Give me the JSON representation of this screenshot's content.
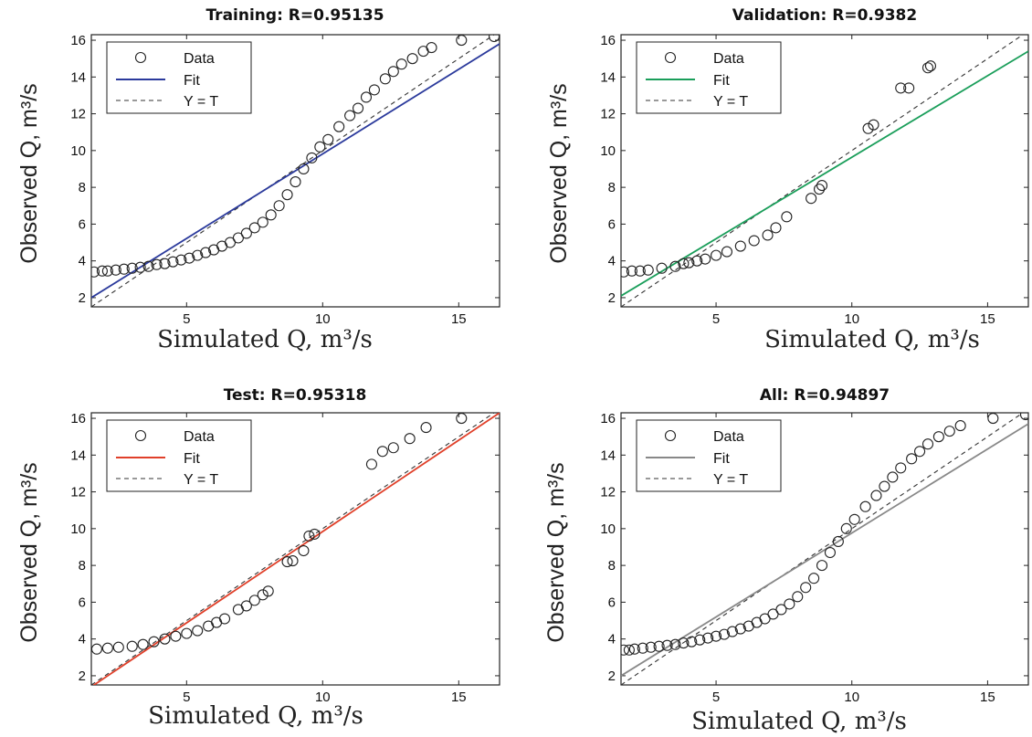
{
  "chart_data": [
    {
      "id": "training",
      "type": "scatter",
      "title": "Training: R=0.95135",
      "xlabel": "Simulated Q, m³/s",
      "ylabel": "Observed Q, m³/s",
      "xlim": [
        1.5,
        16.5
      ],
      "ylim": [
        1.5,
        16.3
      ],
      "xticks": [
        5,
        10,
        15
      ],
      "yticks": [
        2,
        4,
        6,
        8,
        10,
        12,
        14,
        16
      ],
      "grid": false,
      "legend_position": "top-left",
      "fit_color": "#2b3a9c",
      "fit_line": {
        "x": [
          1.5,
          16.5
        ],
        "y": [
          2.0,
          15.8
        ]
      },
      "legend": [
        "Data",
        "Fit",
        "Y = T"
      ],
      "series": [
        {
          "name": "Data",
          "points": [
            [
              1.6,
              3.4
            ],
            [
              1.9,
              3.45
            ],
            [
              2.1,
              3.45
            ],
            [
              2.4,
              3.5
            ],
            [
              2.7,
              3.55
            ],
            [
              3.0,
              3.6
            ],
            [
              3.3,
              3.65
            ],
            [
              3.6,
              3.7
            ],
            [
              3.9,
              3.8
            ],
            [
              4.2,
              3.85
            ],
            [
              4.5,
              3.95
            ],
            [
              4.8,
              4.05
            ],
            [
              5.1,
              4.15
            ],
            [
              5.4,
              4.3
            ],
            [
              5.7,
              4.45
            ],
            [
              6.0,
              4.6
            ],
            [
              6.3,
              4.8
            ],
            [
              6.6,
              5.0
            ],
            [
              6.9,
              5.25
            ],
            [
              7.2,
              5.5
            ],
            [
              7.5,
              5.8
            ],
            [
              7.8,
              6.1
            ],
            [
              8.1,
              6.5
            ],
            [
              8.4,
              7.0
            ],
            [
              8.7,
              7.6
            ],
            [
              9.0,
              8.3
            ],
            [
              9.3,
              9.0
            ],
            [
              9.6,
              9.6
            ],
            [
              9.9,
              10.2
            ],
            [
              10.2,
              10.6
            ],
            [
              10.6,
              11.3
            ],
            [
              11.0,
              11.9
            ],
            [
              11.3,
              12.3
            ],
            [
              11.6,
              12.9
            ],
            [
              11.9,
              13.3
            ],
            [
              12.3,
              13.9
            ],
            [
              12.6,
              14.3
            ],
            [
              12.9,
              14.7
            ],
            [
              13.3,
              15.0
            ],
            [
              13.7,
              15.4
            ],
            [
              14.0,
              15.6
            ],
            [
              15.1,
              16.0
            ],
            [
              16.3,
              16.2
            ]
          ]
        }
      ]
    },
    {
      "id": "validation",
      "type": "scatter",
      "title": "Validation: R=0.9382",
      "xlabel": "Simulated Q, m³/s",
      "ylabel": "Observed Q, m³/s",
      "xlim": [
        1.5,
        16.5
      ],
      "ylim": [
        1.5,
        16.3
      ],
      "xticks": [
        5,
        10,
        15
      ],
      "yticks": [
        2,
        4,
        6,
        8,
        10,
        12,
        14,
        16
      ],
      "grid": false,
      "legend_position": "top-left",
      "fit_color": "#1a9e5a",
      "fit_line": {
        "x": [
          1.5,
          16.5
        ],
        "y": [
          2.1,
          15.4
        ]
      },
      "legend": [
        "Data",
        "Fit",
        "Y = T"
      ],
      "series": [
        {
          "name": "Data",
          "points": [
            [
              1.6,
              3.4
            ],
            [
              1.9,
              3.45
            ],
            [
              2.2,
              3.45
            ],
            [
              2.5,
              3.5
            ],
            [
              3.0,
              3.6
            ],
            [
              3.5,
              3.7
            ],
            [
              3.8,
              3.85
            ],
            [
              4.0,
              3.9
            ],
            [
              4.3,
              4.0
            ],
            [
              4.6,
              4.1
            ],
            [
              5.0,
              4.3
            ],
            [
              5.4,
              4.5
            ],
            [
              5.9,
              4.8
            ],
            [
              6.4,
              5.1
            ],
            [
              6.9,
              5.4
            ],
            [
              7.2,
              5.8
            ],
            [
              7.6,
              6.4
            ],
            [
              8.5,
              7.4
            ],
            [
              8.8,
              7.9
            ],
            [
              8.9,
              8.1
            ],
            [
              10.6,
              11.2
            ],
            [
              10.8,
              11.4
            ],
            [
              11.8,
              13.4
            ],
            [
              12.1,
              13.4
            ],
            [
              12.8,
              14.5
            ],
            [
              12.9,
              14.6
            ]
          ]
        }
      ]
    },
    {
      "id": "test",
      "type": "scatter",
      "title": "Test: R=0.95318",
      "xlabel": "Simulated Q, m³/s",
      "ylabel": "Observed Q, m³/s",
      "xlim": [
        1.5,
        16.5
      ],
      "ylim": [
        1.5,
        16.3
      ],
      "xticks": [
        5,
        10,
        15
      ],
      "yticks": [
        2,
        4,
        6,
        8,
        10,
        12,
        14,
        16
      ],
      "grid": false,
      "legend_position": "top-left",
      "fit_color": "#e0402a",
      "fit_line": {
        "x": [
          1.5,
          16.5
        ],
        "y": [
          1.4,
          16.3
        ]
      },
      "legend": [
        "Data",
        "Fit",
        "Y = T"
      ],
      "series": [
        {
          "name": "Data",
          "points": [
            [
              1.7,
              3.45
            ],
            [
              2.1,
              3.5
            ],
            [
              2.5,
              3.55
            ],
            [
              3.0,
              3.6
            ],
            [
              3.4,
              3.7
            ],
            [
              3.8,
              3.85
            ],
            [
              4.2,
              4.0
            ],
            [
              4.6,
              4.15
            ],
            [
              5.0,
              4.3
            ],
            [
              5.4,
              4.45
            ],
            [
              5.8,
              4.7
            ],
            [
              6.1,
              4.9
            ],
            [
              6.4,
              5.1
            ],
            [
              6.9,
              5.6
            ],
            [
              7.2,
              5.8
            ],
            [
              7.5,
              6.1
            ],
            [
              7.8,
              6.4
            ],
            [
              8.0,
              6.6
            ],
            [
              8.7,
              8.2
            ],
            [
              8.9,
              8.25
            ],
            [
              9.3,
              8.8
            ],
            [
              9.5,
              9.6
            ],
            [
              9.7,
              9.7
            ],
            [
              11.8,
              13.5
            ],
            [
              12.2,
              14.2
            ],
            [
              12.6,
              14.4
            ],
            [
              13.2,
              14.9
            ],
            [
              13.8,
              15.5
            ],
            [
              15.1,
              16.0
            ]
          ]
        }
      ]
    },
    {
      "id": "all",
      "type": "scatter",
      "title": "All: R=0.94897",
      "xlabel": "Simulated Q, m³/s",
      "ylabel": "Observed Q, m³/s",
      "xlim": [
        1.5,
        16.5
      ],
      "ylim": [
        1.5,
        16.3
      ],
      "xticks": [
        5,
        10,
        15
      ],
      "yticks": [
        2,
        4,
        6,
        8,
        10,
        12,
        14,
        16
      ],
      "grid": false,
      "legend_position": "top-left",
      "fit_color": "#888888",
      "fit_line": {
        "x": [
          1.5,
          16.5
        ],
        "y": [
          2.0,
          15.7
        ]
      },
      "legend": [
        "Data",
        "Fit",
        "Y = T"
      ],
      "series": [
        {
          "name": "Data",
          "points": [
            [
              1.6,
              3.4
            ],
            [
              1.8,
              3.4
            ],
            [
              2.0,
              3.45
            ],
            [
              2.3,
              3.5
            ],
            [
              2.6,
              3.55
            ],
            [
              2.9,
              3.6
            ],
            [
              3.2,
              3.65
            ],
            [
              3.5,
              3.7
            ],
            [
              3.8,
              3.78
            ],
            [
              4.1,
              3.85
            ],
            [
              4.4,
              3.95
            ],
            [
              4.7,
              4.05
            ],
            [
              5.0,
              4.15
            ],
            [
              5.3,
              4.25
            ],
            [
              5.6,
              4.4
            ],
            [
              5.9,
              4.55
            ],
            [
              6.2,
              4.7
            ],
            [
              6.5,
              4.9
            ],
            [
              6.8,
              5.1
            ],
            [
              7.1,
              5.35
            ],
            [
              7.4,
              5.6
            ],
            [
              7.7,
              5.9
            ],
            [
              8.0,
              6.3
            ],
            [
              8.3,
              6.8
            ],
            [
              8.6,
              7.3
            ],
            [
              8.9,
              8.0
            ],
            [
              9.2,
              8.7
            ],
            [
              9.5,
              9.3
            ],
            [
              9.8,
              10.0
            ],
            [
              10.1,
              10.5
            ],
            [
              10.5,
              11.2
            ],
            [
              10.9,
              11.8
            ],
            [
              11.2,
              12.3
            ],
            [
              11.5,
              12.8
            ],
            [
              11.8,
              13.3
            ],
            [
              12.2,
              13.8
            ],
            [
              12.5,
              14.2
            ],
            [
              12.8,
              14.6
            ],
            [
              13.2,
              15.0
            ],
            [
              13.6,
              15.3
            ],
            [
              14.0,
              15.6
            ],
            [
              15.2,
              16.0
            ],
            [
              16.4,
              16.2
            ]
          ]
        }
      ]
    }
  ]
}
